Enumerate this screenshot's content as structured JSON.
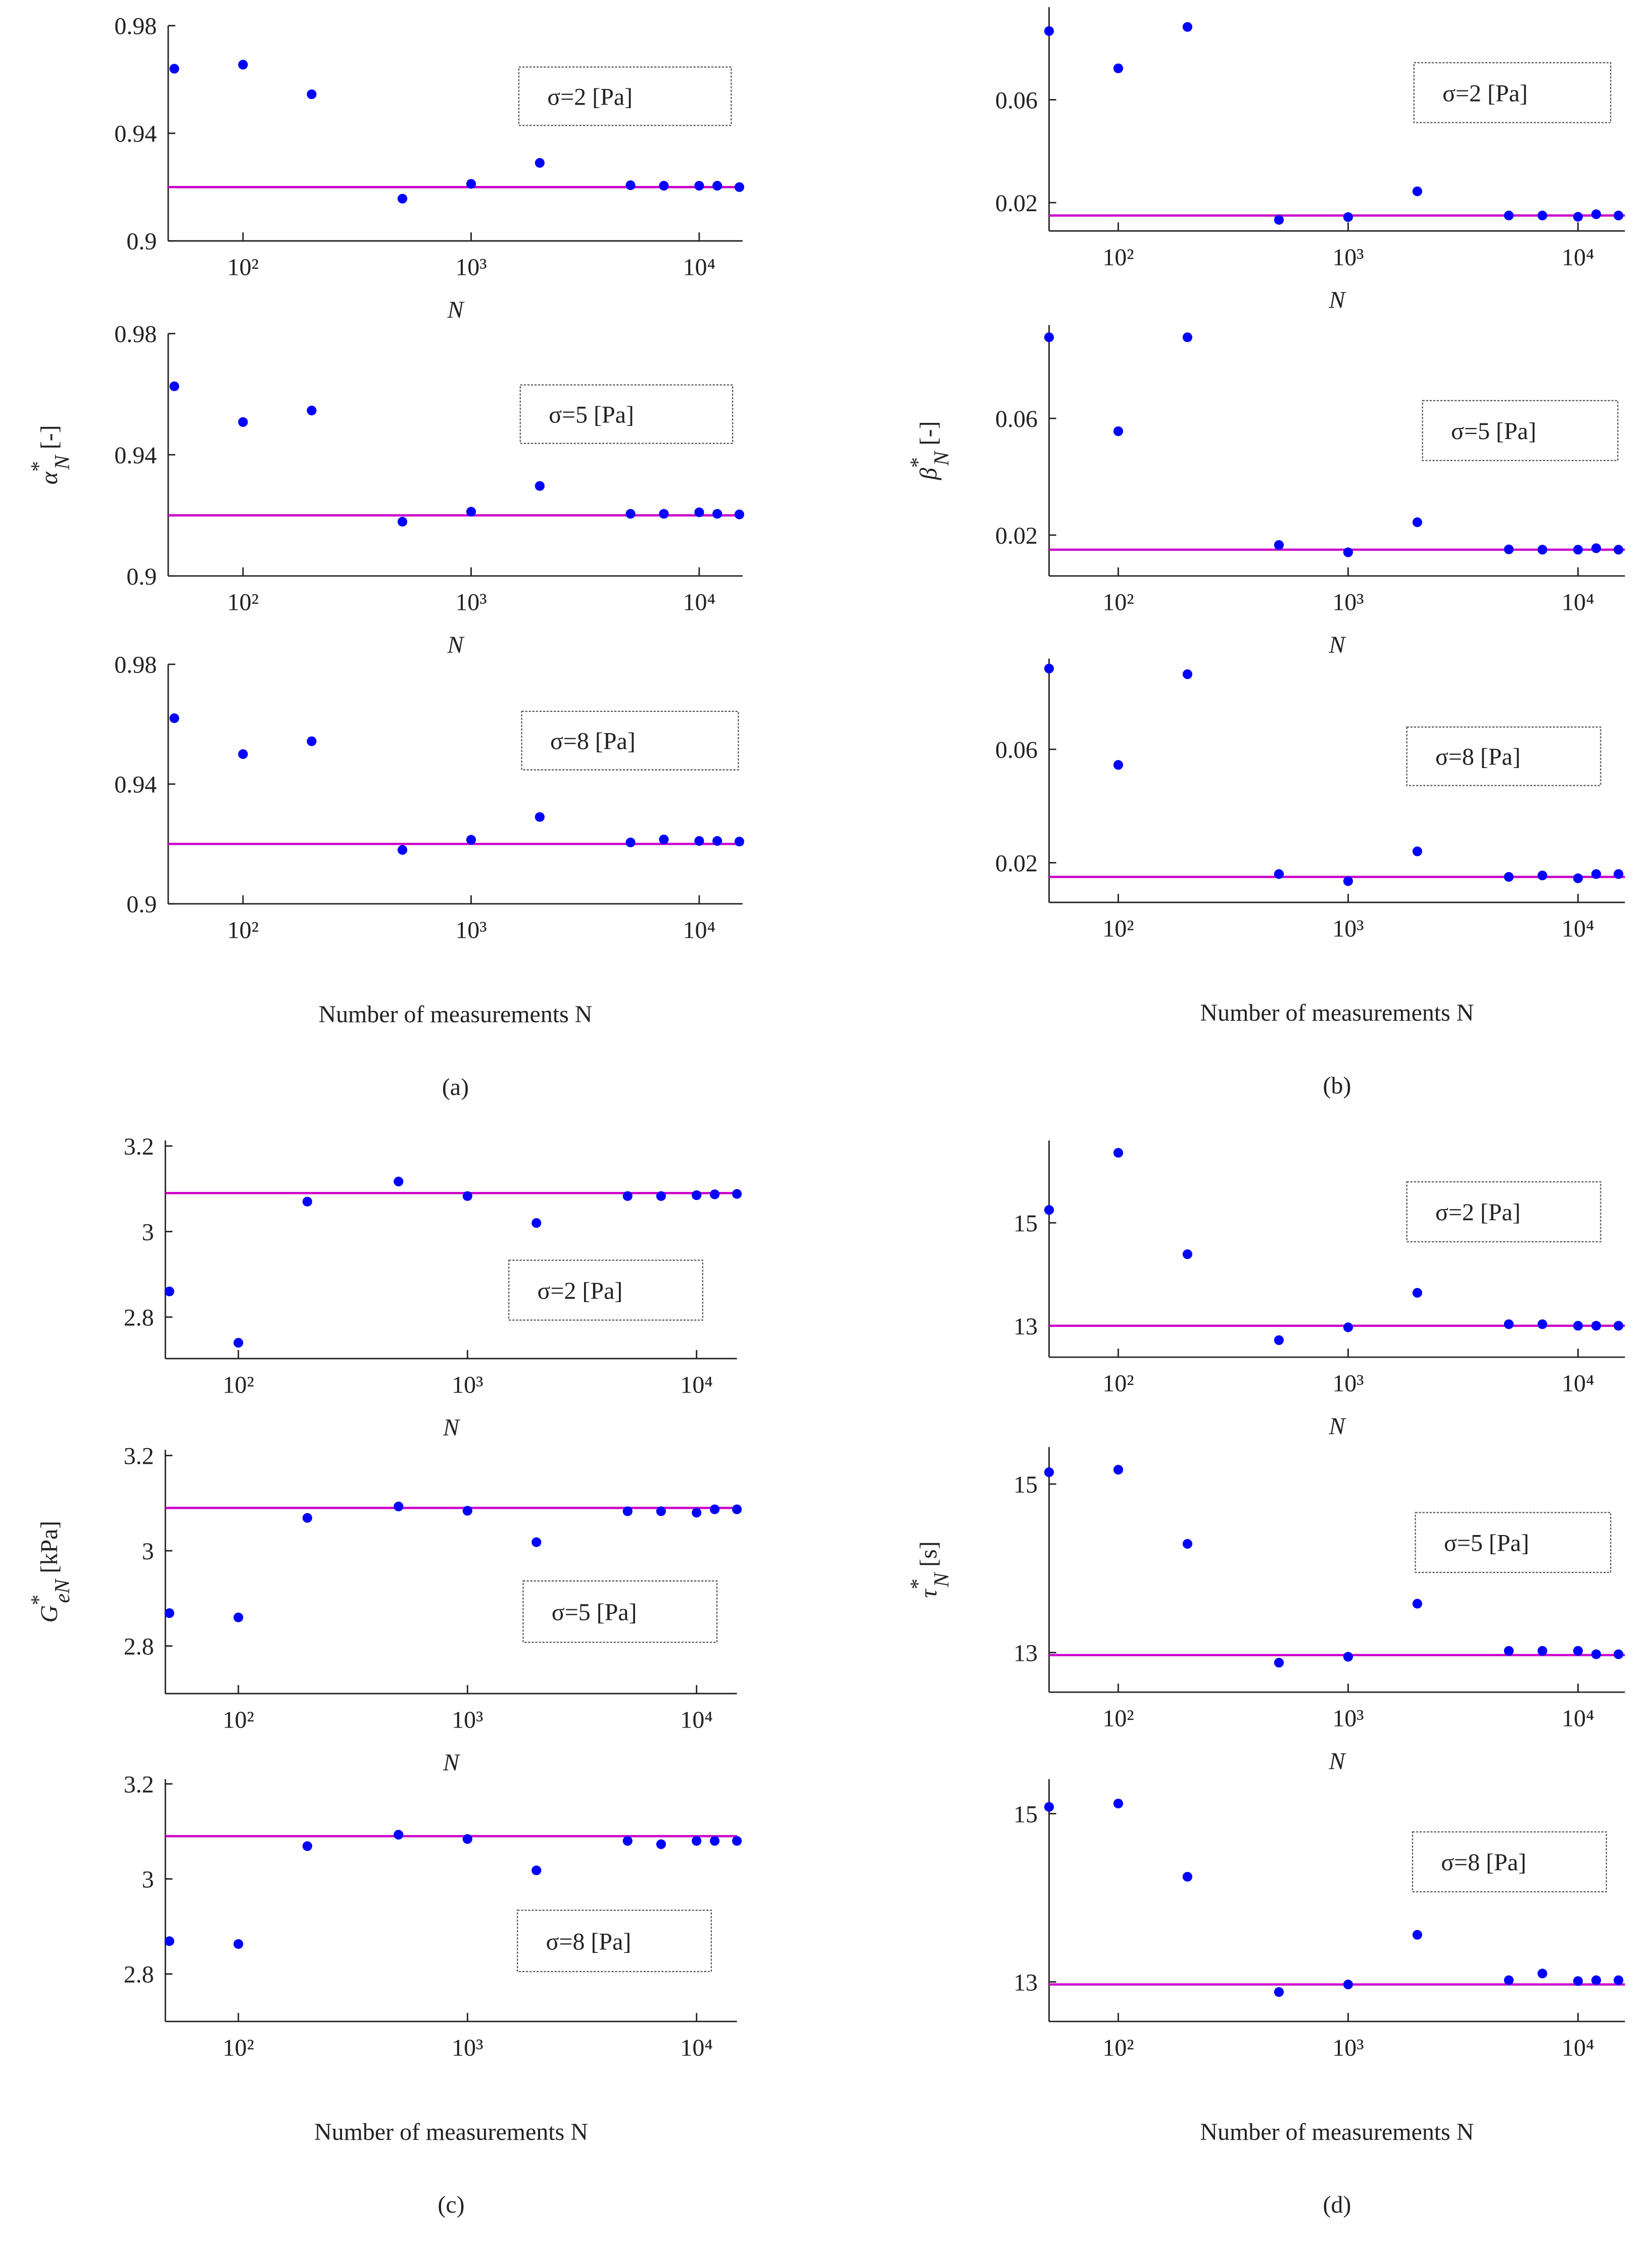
{
  "chart_data": [
    {
      "type": "scatter",
      "annotation": "σ=2 [Pa]",
      "xscale": "log",
      "xlim": [
        47,
        15500
      ],
      "xticks": [
        {
          "value": 100,
          "label": "10²"
        },
        {
          "value": 1000,
          "label": "10³"
        },
        {
          "value": 10000,
          "label": "10⁴"
        }
      ],
      "ylim": [
        0.9,
        0.98
      ],
      "yticks": [
        0.9,
        0.94,
        0.98
      ],
      "xlabel": "N",
      "color": "#0000ff",
      "line_color": "#cc00cc",
      "reference_line": 0.92,
      "x": [
        50,
        100,
        200,
        500,
        1000,
        2000,
        5000,
        7000,
        10000,
        12000,
        15000
      ],
      "values": [
        0.964,
        0.9655,
        0.9545,
        0.9157,
        0.9212,
        0.929,
        0.9207,
        0.9205,
        0.9205,
        0.9205,
        0.92
      ]
    },
    {
      "type": "scatter",
      "annotation": "σ=5 [Pa]",
      "xscale": "log",
      "xlim": [
        47,
        15500
      ],
      "xticks": [
        {
          "value": 100,
          "label": "10²"
        },
        {
          "value": 1000,
          "label": "10³"
        },
        {
          "value": 10000,
          "label": "10⁴"
        }
      ],
      "ylim": [
        0.9,
        0.98
      ],
      "yticks": [
        0.9,
        0.94,
        0.98
      ],
      "xlabel": "N",
      "ylabel": {
        "symbol": "α",
        "sup": "*",
        "sub": "N",
        "unit": "[-]"
      },
      "color": "#0000ff",
      "line_color": "#cc00cc",
      "reference_line": 0.92,
      "x": [
        50,
        100,
        200,
        500,
        1000,
        2000,
        5000,
        7000,
        10000,
        12000,
        15000
      ],
      "values": [
        0.9626,
        0.9508,
        0.9546,
        0.9179,
        0.9212,
        0.9297,
        0.9205,
        0.9205,
        0.921,
        0.9205,
        0.9203
      ]
    },
    {
      "type": "scatter",
      "annotation": "σ=8 [Pa]",
      "xscale": "log",
      "xlim": [
        47,
        15500
      ],
      "xticks": [
        {
          "value": 100,
          "label": "10²"
        },
        {
          "value": 1000,
          "label": "10³"
        },
        {
          "value": 10000,
          "label": "10⁴"
        }
      ],
      "ylim": [
        0.9,
        0.98
      ],
      "yticks": [
        0.9,
        0.94,
        0.98
      ],
      "xlabel": "Number of measurements N",
      "panel_label": "(a)",
      "color": "#0000ff",
      "line_color": "#cc00cc",
      "reference_line": 0.92,
      "x": [
        50,
        100,
        200,
        500,
        1000,
        2000,
        5000,
        7000,
        10000,
        12000,
        15000
      ],
      "values": [
        0.962,
        0.95,
        0.9543,
        0.918,
        0.9214,
        0.929,
        0.9205,
        0.9215,
        0.921,
        0.921,
        0.9208
      ]
    },
    {
      "type": "scatter",
      "annotation": "σ=2 [Pa]",
      "xscale": "log",
      "xlim": [
        50,
        16000
      ],
      "xticks": [
        {
          "value": 100,
          "label": "10²"
        },
        {
          "value": 1000,
          "label": "10³"
        },
        {
          "value": 10000,
          "label": "10⁴"
        }
      ],
      "ylim": [
        0.009,
        0.096
      ],
      "yticks": [
        0.02,
        0.06
      ],
      "xlabel": "N",
      "color": "#0000ff",
      "line_color": "#cc00cc",
      "reference_line": 0.015,
      "x": [
        50,
        100,
        200,
        500,
        1000,
        2000,
        5000,
        7000,
        10000,
        12000,
        15000
      ],
      "values": [
        0.0867,
        0.0722,
        0.0883,
        0.0133,
        0.0144,
        0.0244,
        0.015,
        0.015,
        0.0145,
        0.0155,
        0.015
      ]
    },
    {
      "type": "scatter",
      "annotation": "σ=5 [Pa]",
      "xscale": "log",
      "xlim": [
        50,
        16000
      ],
      "xticks": [
        {
          "value": 100,
          "label": "10²"
        },
        {
          "value": 1000,
          "label": "10³"
        },
        {
          "value": 10000,
          "label": "10⁴"
        }
      ],
      "ylim": [
        0.006,
        0.092
      ],
      "yticks": [
        0.02,
        0.06
      ],
      "xlabel": "N",
      "ylabel": {
        "symbol": "β",
        "sup": "*",
        "sub": "N",
        "unit": "[-]"
      },
      "color": "#0000ff",
      "line_color": "#cc00cc",
      "reference_line": 0.015,
      "x": [
        50,
        100,
        200,
        500,
        1000,
        2000,
        5000,
        7000,
        10000,
        12000,
        15000
      ],
      "values": [
        0.0878,
        0.0556,
        0.0878,
        0.0166,
        0.0141,
        0.0244,
        0.0151,
        0.015,
        0.015,
        0.0155,
        0.015
      ]
    },
    {
      "type": "scatter",
      "annotation": "σ=8 [Pa]",
      "xscale": "log",
      "xlim": [
        50,
        16000
      ],
      "xticks": [
        {
          "value": 100,
          "label": "10²"
        },
        {
          "value": 1000,
          "label": "10³"
        },
        {
          "value": 10000,
          "label": "10⁴"
        }
      ],
      "ylim": [
        0.006,
        0.092
      ],
      "yticks": [
        0.02,
        0.06
      ],
      "xlabel": "Number of measurements N",
      "panel_label": "(b)",
      "color": "#0000ff",
      "line_color": "#cc00cc",
      "reference_line": 0.015,
      "x": [
        50,
        100,
        200,
        500,
        1000,
        2000,
        5000,
        7000,
        10000,
        12000,
        15000
      ],
      "values": [
        0.0885,
        0.0545,
        0.0865,
        0.016,
        0.0135,
        0.024,
        0.015,
        0.0155,
        0.0145,
        0.016,
        0.016
      ]
    },
    {
      "type": "scatter",
      "annotation": "σ=2 [Pa]",
      "xscale": "log",
      "xlim": [
        48,
        15000
      ],
      "xticks": [
        {
          "value": 100,
          "label": "10²"
        },
        {
          "value": 1000,
          "label": "10³"
        },
        {
          "value": 10000,
          "label": "10⁴"
        }
      ],
      "ylim": [
        2.703,
        3.213
      ],
      "yticks": [
        2.8,
        3,
        3.2
      ],
      "xlabel": "N",
      "color": "#0000ff",
      "line_color": "#cc00cc",
      "reference_line": 3.09,
      "x": [
        50,
        100,
        200,
        500,
        1000,
        2000,
        5000,
        7000,
        10000,
        12000,
        15000
      ],
      "values": [
        2.86,
        2.74,
        3.07,
        3.117,
        3.083,
        3.02,
        3.083,
        3.083,
        3.085,
        3.087,
        3.088
      ]
    },
    {
      "type": "scatter",
      "annotation": "σ=5 [Pa]",
      "xscale": "log",
      "xlim": [
        48,
        15000
      ],
      "xticks": [
        {
          "value": 100,
          "label": "10²"
        },
        {
          "value": 1000,
          "label": "10³"
        },
        {
          "value": 10000,
          "label": "10⁴"
        }
      ],
      "ylim": [
        2.7,
        3.212
      ],
      "yticks": [
        2.8,
        3,
        3.2
      ],
      "xlabel": "N",
      "ylabel": {
        "symbol": "G",
        "sup": "*",
        "sub": "eN",
        "unit": "[kPa]"
      },
      "color": "#0000ff",
      "line_color": "#cc00cc",
      "reference_line": 3.09,
      "x": [
        50,
        100,
        200,
        500,
        1000,
        2000,
        5000,
        7000,
        10000,
        12000,
        15000
      ],
      "values": [
        2.869,
        2.86,
        3.069,
        3.093,
        3.084,
        3.018,
        3.083,
        3.083,
        3.08,
        3.087,
        3.087
      ]
    },
    {
      "type": "scatter",
      "annotation": "σ=8 [Pa]",
      "xscale": "log",
      "xlim": [
        48,
        15000
      ],
      "xticks": [
        {
          "value": 100,
          "label": "10²"
        },
        {
          "value": 1000,
          "label": "10³"
        },
        {
          "value": 10000,
          "label": "10⁴"
        }
      ],
      "ylim": [
        2.7,
        3.21
      ],
      "yticks": [
        2.8,
        3,
        3.2
      ],
      "xlabel": "Number of measurements N",
      "panel_label": "(c)",
      "color": "#0000ff",
      "line_color": "#cc00cc",
      "reference_line": 3.09,
      "x": [
        50,
        100,
        200,
        500,
        1000,
        2000,
        5000,
        7000,
        10000,
        12000,
        15000
      ],
      "values": [
        2.869,
        2.863,
        3.069,
        3.093,
        3.084,
        3.018,
        3.08,
        3.073,
        3.08,
        3.08,
        3.08
      ]
    },
    {
      "type": "scatter",
      "annotation": "σ=2 [Pa]",
      "xscale": "log",
      "xlim": [
        50,
        16000
      ],
      "xticks": [
        {
          "value": 100,
          "label": "10²"
        },
        {
          "value": 1000,
          "label": "10³"
        },
        {
          "value": 10000,
          "label": "10⁴"
        }
      ],
      "ylim": [
        12.39,
        16.6
      ],
      "yticks": [
        13,
        15
      ],
      "xlabel": "N",
      "color": "#0000ff",
      "line_color": "#cc00cc",
      "reference_line": 13,
      "x": [
        50,
        100,
        200,
        500,
        1000,
        2000,
        5000,
        7000,
        10000,
        12000,
        15000
      ],
      "values": [
        15.25,
        16.36,
        14.39,
        12.72,
        12.97,
        13.64,
        13.03,
        13.03,
        13,
        13,
        13
      ]
    },
    {
      "type": "scatter",
      "annotation": "σ=5 [Pa]",
      "xscale": "log",
      "xlim": [
        50,
        16000
      ],
      "xticks": [
        {
          "value": 100,
          "label": "10²"
        },
        {
          "value": 1000,
          "label": "10³"
        },
        {
          "value": 10000,
          "label": "10⁴"
        }
      ],
      "ylim": [
        12.53,
        15.44
      ],
      "yticks": [
        13,
        15
      ],
      "xlabel": "N",
      "ylabel": {
        "symbol": "τ",
        "sup": "*",
        "sub": "N",
        "unit": "[s]"
      },
      "color": "#0000ff",
      "line_color": "#cc00cc",
      "reference_line": 12.97,
      "x": [
        50,
        100,
        200,
        500,
        1000,
        2000,
        5000,
        7000,
        10000,
        12000,
        15000
      ],
      "values": [
        15.14,
        15.17,
        14.29,
        12.88,
        12.95,
        13.58,
        13.02,
        13.02,
        13.02,
        12.98,
        12.98
      ]
    },
    {
      "type": "scatter",
      "annotation": "σ=8 [Pa]",
      "xscale": "log",
      "xlim": [
        50,
        16000
      ],
      "xticks": [
        {
          "value": 100,
          "label": "10²"
        },
        {
          "value": 1000,
          "label": "10³"
        },
        {
          "value": 10000,
          "label": "10⁴"
        }
      ],
      "ylim": [
        12.53,
        15.41
      ],
      "yticks": [
        13,
        15
      ],
      "xlabel": "Number of measurements N",
      "panel_label": "(d)",
      "color": "#0000ff",
      "line_color": "#cc00cc",
      "reference_line": 12.97,
      "x": [
        50,
        100,
        200,
        500,
        1000,
        2000,
        5000,
        7000,
        10000,
        12000,
        15000
      ],
      "values": [
        15.08,
        15.12,
        14.25,
        12.88,
        12.97,
        13.56,
        13.02,
        13.1,
        13.01,
        13.02,
        13.02
      ]
    }
  ]
}
